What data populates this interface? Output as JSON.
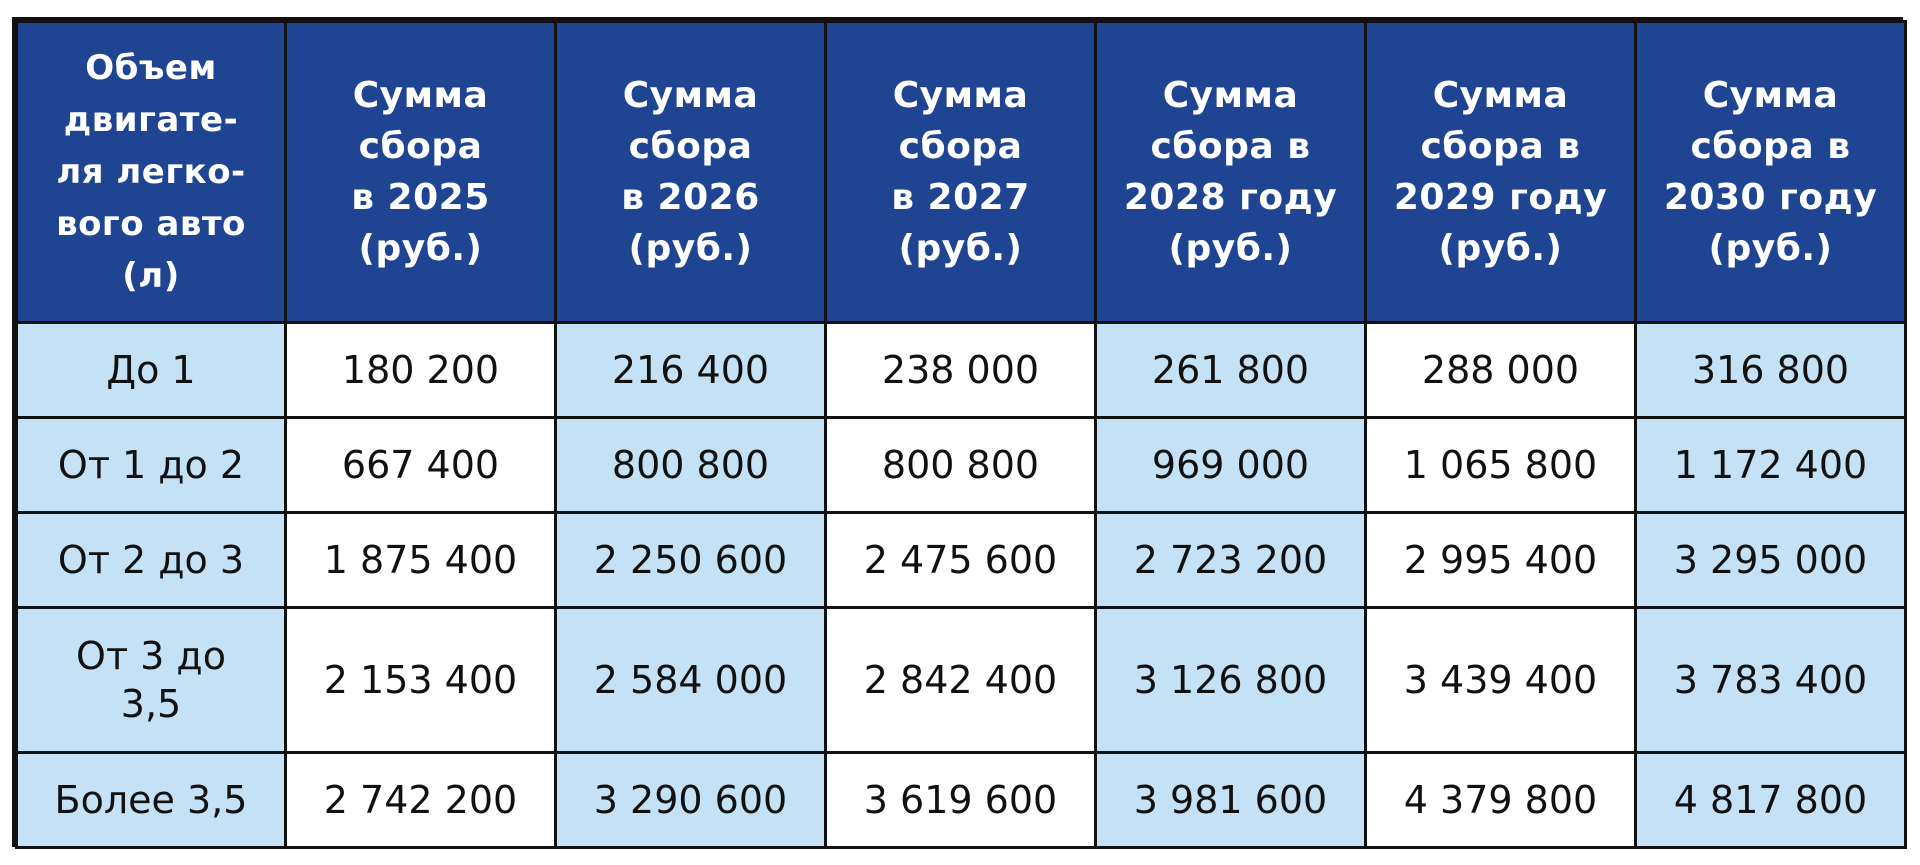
{
  "table": {
    "headers": [
      "Объем\nдвигате-\nля легко-\nвого авто\n(л)",
      "Сумма\nсбора\nв 2025\n(руб.)",
      "Сумма\nсбора\nв 2026\n(руб.)",
      "Сумма\nсбора\nв 2027\n(руб.)",
      "Сумма\nсбора в\n2028 году\n(руб.)",
      "Сумма\nсбора в\n2029 году\n(руб.)",
      "Сумма\nсбора в\n2030 году\n(руб.)"
    ],
    "rows": [
      [
        "До 1",
        "180 200",
        "216 400",
        "238 000",
        "261 800",
        "288 000",
        "316 800"
      ],
      [
        "От 1 до 2",
        "667 400",
        "800 800",
        "800 800",
        "969 000",
        "1 065 800",
        "1 172 400"
      ],
      [
        "От 2 до 3",
        "1 875 400",
        "2 250 600",
        "2 475 600",
        "2 723 200",
        "2 995 400",
        "3 295 000"
      ],
      [
        "От 3 до\n3,5",
        "2 153 400",
        "2 584 000",
        "2 842 400",
        "3 126 800",
        "3 439 400",
        "3 783 400"
      ],
      [
        "Более 3,5",
        "2 742 200",
        "3 290 600",
        "3 619 600",
        "3 981 600",
        "4 379 800",
        "4 817 800"
      ]
    ]
  },
  "colors": {
    "header_bg": "#1f4592",
    "header_text": "#ffffff",
    "cell_blue": "#c5e1f5",
    "cell_white": "#ffffff",
    "border": "#111111"
  }
}
